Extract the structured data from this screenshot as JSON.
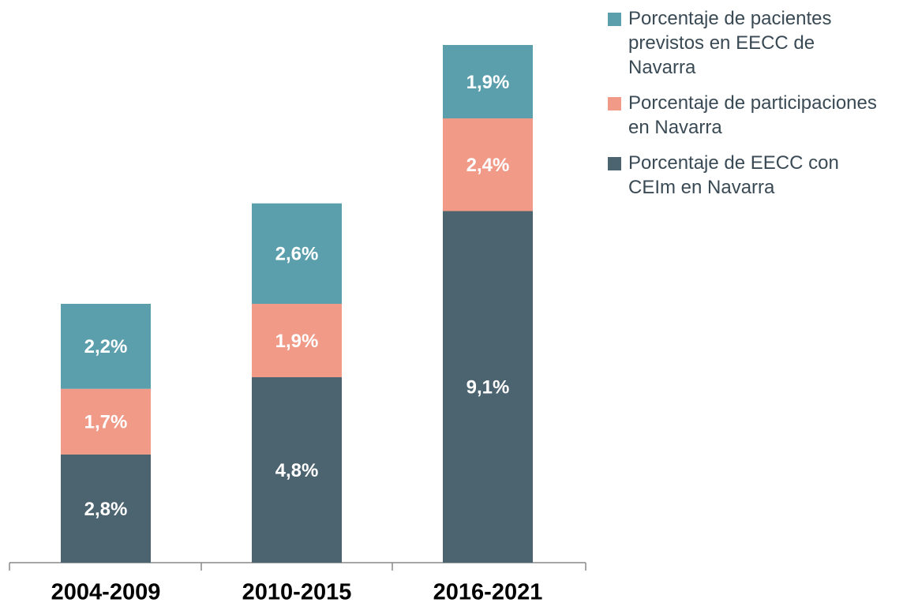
{
  "chart_data": {
    "type": "stacked_bar",
    "categories": [
      "2004-2009",
      "2010-2015",
      "2016-2021"
    ],
    "series": [
      {
        "name": "Porcentaje de EECC con CEIm en Navarra",
        "color": "#4c6370",
        "values": [
          2.8,
          4.8,
          9.1
        ],
        "value_labels": [
          "2,8%",
          "4,8%",
          "9,1%"
        ]
      },
      {
        "name": "Porcentaje de participaciones en Navarra",
        "color": "#f09a87",
        "values": [
          1.7,
          1.9,
          2.4
        ],
        "value_labels": [
          "1,7%",
          "1,9%",
          "2,4%"
        ]
      },
      {
        "name": "Porcentaje de pacientes previstos en EECC de Navarra",
        "color": "#5b9fad",
        "values": [
          2.2,
          2.6,
          1.9
        ],
        "value_labels": [
          "2,2%",
          "2,6%",
          "1,9%"
        ]
      }
    ]
  }
}
